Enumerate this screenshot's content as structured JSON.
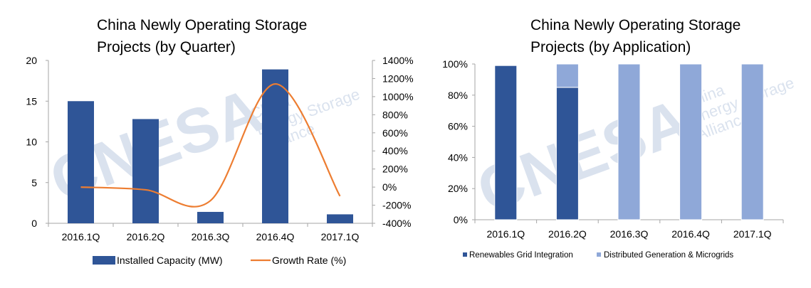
{
  "chart_data": [
    {
      "type": "bar+line",
      "title_lines": [
        "China Newly Operating Storage",
        "Projects (by Quarter)"
      ],
      "categories": [
        "2016.1Q",
        "2016.2Q",
        "2016.3Q",
        "2016.4Q",
        "2017.1Q"
      ],
      "series": [
        {
          "name": "Installed Capacity (MW)",
          "type": "bar",
          "axis": "left",
          "values": [
            15.0,
            12.8,
            1.4,
            18.9,
            1.1
          ],
          "color": "#2F5597"
        },
        {
          "name": "Growth Rate (%)",
          "type": "line",
          "axis": "right",
          "values": [
            0,
            -30,
            -150,
            1140,
            -100
          ],
          "color": "#ED7D31"
        }
      ],
      "ylim_left": [
        0,
        20
      ],
      "yticks_left": [
        "0",
        "5",
        "10",
        "15",
        "20"
      ],
      "ylim_right": [
        -400,
        1400
      ],
      "yticks_right": [
        "-400%",
        "-200%",
        "0%",
        "200%",
        "400%",
        "600%",
        "800%",
        "1000%",
        "1200%",
        "1400%"
      ],
      "legend_position": "bottom",
      "grid": false
    },
    {
      "type": "stacked-bar-100",
      "title_lines": [
        "China Newly Operating Storage",
        "Projects (by Application)"
      ],
      "categories": [
        "2016.1Q",
        "2016.2Q",
        "2016.3Q",
        "2016.4Q",
        "2017.1Q"
      ],
      "series": [
        {
          "name": "Renewables Grid Integration",
          "values": [
            99,
            85,
            0,
            0,
            0
          ],
          "color": "#2F5597"
        },
        {
          "name": "Distributed Generation & Microgrids",
          "values": [
            0,
            15,
            100,
            100,
            100
          ],
          "color": "#8FA8D8"
        }
      ],
      "ylim": [
        0,
        100
      ],
      "yticks": [
        "0%",
        "20%",
        "40%",
        "60%",
        "80%",
        "100%"
      ],
      "legend_position": "bottom",
      "grid": false
    }
  ],
  "watermark": {
    "logo_text": "CNESA",
    "lines": [
      "China",
      "Energy Storage",
      "Alliance"
    ]
  }
}
